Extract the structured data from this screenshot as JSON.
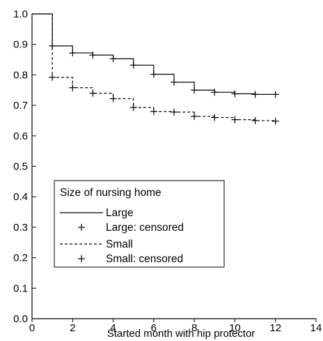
{
  "chart_data": {
    "type": "line",
    "title": "",
    "xlabel": "Started month with hip protector",
    "ylabel": "",
    "xlim": [
      0,
      14
    ],
    "ylim": [
      0.0,
      1.0
    ],
    "x_ticks": [
      0,
      2,
      4,
      6,
      8,
      10,
      12,
      14
    ],
    "y_ticks": [
      0.0,
      0.1,
      0.2,
      0.3,
      0.4,
      0.5,
      0.6,
      0.7,
      0.8,
      0.9,
      1.0
    ],
    "x_tick_labels": [
      "0",
      "2",
      "4",
      "6",
      "8",
      "10",
      "12",
      "14"
    ],
    "y_tick_labels": [
      "0.0",
      "0.1",
      "0.2",
      "0.3",
      "0.4",
      "0.5",
      "0.6",
      "0.7",
      "0.8",
      "0.9",
      "1.0"
    ],
    "grid": false,
    "step": true,
    "legend": {
      "title": "Size of nursing home",
      "placement": "lower-left",
      "entries": [
        "Large",
        "Large: censored",
        "Small",
        "Small: censored"
      ]
    },
    "series": [
      {
        "name": "Large",
        "style": "solid",
        "x": [
          0,
          1,
          2,
          3,
          4,
          5,
          6,
          7,
          8,
          9,
          10,
          11,
          12
        ],
        "y": [
          1.0,
          0.895,
          0.872,
          0.865,
          0.853,
          0.832,
          0.802,
          0.776,
          0.75,
          0.743,
          0.738,
          0.736,
          0.736
        ]
      },
      {
        "name": "Large: censored",
        "style": "plus",
        "x": [
          1,
          2,
          3,
          4,
          5,
          6,
          7,
          8,
          9,
          10,
          11,
          12
        ],
        "y": [
          0.895,
          0.872,
          0.865,
          0.853,
          0.832,
          0.802,
          0.776,
          0.75,
          0.743,
          0.738,
          0.736,
          0.736
        ]
      },
      {
        "name": "Small",
        "style": "dashed",
        "x": [
          0,
          1,
          2,
          3,
          4,
          5,
          6,
          7,
          8,
          9,
          10,
          11,
          12
        ],
        "y": [
          1.0,
          0.792,
          0.758,
          0.74,
          0.722,
          0.693,
          0.68,
          0.678,
          0.664,
          0.66,
          0.653,
          0.65,
          0.648
        ]
      },
      {
        "name": "Small: censored",
        "style": "plus",
        "x": [
          1,
          2,
          3,
          4,
          5,
          6,
          7,
          8,
          9,
          10,
          11,
          12
        ],
        "y": [
          0.792,
          0.758,
          0.74,
          0.722,
          0.693,
          0.68,
          0.678,
          0.664,
          0.66,
          0.653,
          0.65,
          0.648
        ]
      }
    ]
  }
}
